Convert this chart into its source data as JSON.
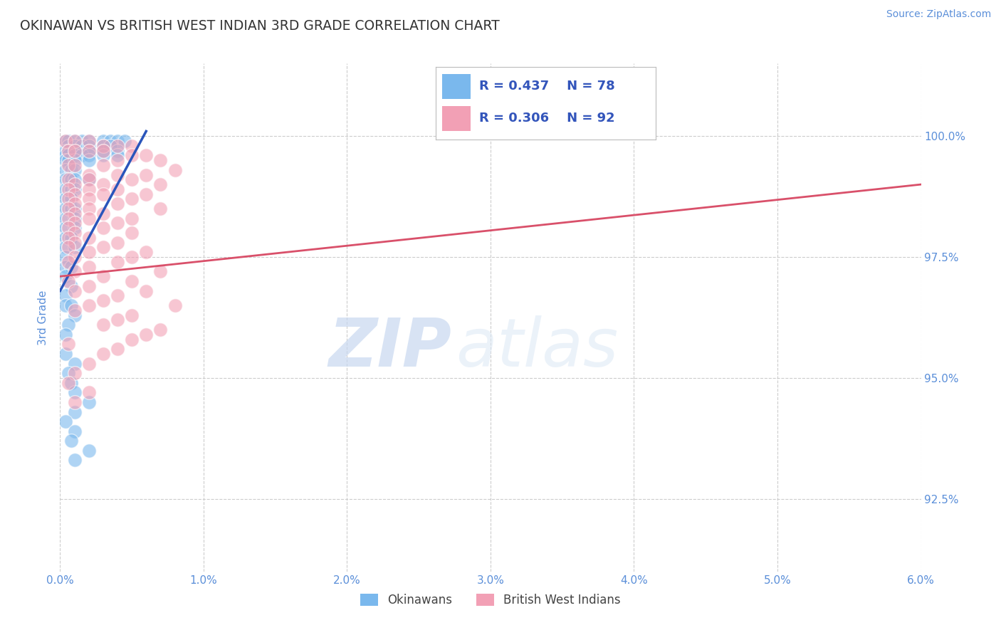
{
  "title": "OKINAWAN VS BRITISH WEST INDIAN 3RD GRADE CORRELATION CHART",
  "source_text": "Source: ZipAtlas.com",
  "ylabel": "3rd Grade",
  "xlim": [
    0.0,
    0.06
  ],
  "ylim": [
    0.91,
    1.015
  ],
  "xticks": [
    0.0,
    0.01,
    0.02,
    0.03,
    0.04,
    0.05,
    0.06
  ],
  "xticklabels": [
    "0.0%",
    "1.0%",
    "2.0%",
    "3.0%",
    "4.0%",
    "5.0%",
    "6.0%"
  ],
  "yticks": [
    0.925,
    0.95,
    0.975,
    1.0
  ],
  "yticklabels": [
    "92.5%",
    "95.0%",
    "97.5%",
    "100.0%"
  ],
  "blue_R": 0.437,
  "blue_N": 78,
  "pink_R": 0.306,
  "pink_N": 92,
  "blue_color": "#7ab8ed",
  "pink_color": "#f2a0b5",
  "blue_line_color": "#2a55bb",
  "pink_line_color": "#d9506a",
  "legend_label_blue": "Okinawans",
  "legend_label_pink": "British West Indians",
  "blue_scatter": [
    [
      0.0004,
      0.999
    ],
    [
      0.0006,
      0.999
    ],
    [
      0.001,
      0.999
    ],
    [
      0.0015,
      0.999
    ],
    [
      0.002,
      0.999
    ],
    [
      0.003,
      0.999
    ],
    [
      0.0035,
      0.999
    ],
    [
      0.004,
      0.999
    ],
    [
      0.0045,
      0.999
    ],
    [
      0.0006,
      0.998
    ],
    [
      0.001,
      0.998
    ],
    [
      0.0015,
      0.998
    ],
    [
      0.002,
      0.998
    ],
    [
      0.003,
      0.998
    ],
    [
      0.0035,
      0.998
    ],
    [
      0.0004,
      0.997
    ],
    [
      0.0006,
      0.997
    ],
    [
      0.001,
      0.997
    ],
    [
      0.002,
      0.997
    ],
    [
      0.003,
      0.997
    ],
    [
      0.004,
      0.997
    ],
    [
      0.0004,
      0.996
    ],
    [
      0.0006,
      0.996
    ],
    [
      0.001,
      0.996
    ],
    [
      0.0015,
      0.996
    ],
    [
      0.002,
      0.996
    ],
    [
      0.003,
      0.996
    ],
    [
      0.004,
      0.996
    ],
    [
      0.0004,
      0.995
    ],
    [
      0.0006,
      0.995
    ],
    [
      0.001,
      0.995
    ],
    [
      0.002,
      0.995
    ],
    [
      0.0004,
      0.993
    ],
    [
      0.0008,
      0.993
    ],
    [
      0.001,
      0.993
    ],
    [
      0.0004,
      0.991
    ],
    [
      0.0008,
      0.991
    ],
    [
      0.001,
      0.991
    ],
    [
      0.002,
      0.991
    ],
    [
      0.0004,
      0.989
    ],
    [
      0.0008,
      0.989
    ],
    [
      0.001,
      0.989
    ],
    [
      0.0004,
      0.987
    ],
    [
      0.0008,
      0.987
    ],
    [
      0.0004,
      0.985
    ],
    [
      0.0008,
      0.985
    ],
    [
      0.001,
      0.985
    ],
    [
      0.0004,
      0.983
    ],
    [
      0.001,
      0.983
    ],
    [
      0.0004,
      0.981
    ],
    [
      0.001,
      0.981
    ],
    [
      0.0004,
      0.979
    ],
    [
      0.0008,
      0.979
    ],
    [
      0.0004,
      0.977
    ],
    [
      0.001,
      0.977
    ],
    [
      0.0004,
      0.975
    ],
    [
      0.0004,
      0.973
    ],
    [
      0.0008,
      0.973
    ],
    [
      0.0004,
      0.971
    ],
    [
      0.0008,
      0.969
    ],
    [
      0.0004,
      0.967
    ],
    [
      0.0004,
      0.965
    ],
    [
      0.0008,
      0.965
    ],
    [
      0.001,
      0.963
    ],
    [
      0.0006,
      0.961
    ],
    [
      0.0004,
      0.959
    ],
    [
      0.0004,
      0.955
    ],
    [
      0.001,
      0.953
    ],
    [
      0.0006,
      0.951
    ],
    [
      0.0008,
      0.949
    ],
    [
      0.001,
      0.947
    ],
    [
      0.002,
      0.945
    ],
    [
      0.001,
      0.943
    ],
    [
      0.0004,
      0.941
    ],
    [
      0.001,
      0.939
    ],
    [
      0.0008,
      0.937
    ],
    [
      0.002,
      0.935
    ],
    [
      0.001,
      0.933
    ]
  ],
  "pink_scatter": [
    [
      0.0004,
      0.999
    ],
    [
      0.001,
      0.999
    ],
    [
      0.002,
      0.999
    ],
    [
      0.003,
      0.998
    ],
    [
      0.004,
      0.998
    ],
    [
      0.005,
      0.998
    ],
    [
      0.0006,
      0.997
    ],
    [
      0.001,
      0.997
    ],
    [
      0.002,
      0.997
    ],
    [
      0.003,
      0.997
    ],
    [
      0.005,
      0.996
    ],
    [
      0.006,
      0.996
    ],
    [
      0.004,
      0.995
    ],
    [
      0.007,
      0.995
    ],
    [
      0.0006,
      0.994
    ],
    [
      0.001,
      0.994
    ],
    [
      0.003,
      0.994
    ],
    [
      0.008,
      0.993
    ],
    [
      0.002,
      0.992
    ],
    [
      0.004,
      0.992
    ],
    [
      0.006,
      0.992
    ],
    [
      0.0006,
      0.991
    ],
    [
      0.002,
      0.991
    ],
    [
      0.005,
      0.991
    ],
    [
      0.001,
      0.99
    ],
    [
      0.003,
      0.99
    ],
    [
      0.007,
      0.99
    ],
    [
      0.0006,
      0.989
    ],
    [
      0.002,
      0.989
    ],
    [
      0.004,
      0.989
    ],
    [
      0.001,
      0.988
    ],
    [
      0.003,
      0.988
    ],
    [
      0.006,
      0.988
    ],
    [
      0.0006,
      0.987
    ],
    [
      0.002,
      0.987
    ],
    [
      0.005,
      0.987
    ],
    [
      0.001,
      0.986
    ],
    [
      0.004,
      0.986
    ],
    [
      0.0006,
      0.985
    ],
    [
      0.002,
      0.985
    ],
    [
      0.007,
      0.985
    ],
    [
      0.001,
      0.984
    ],
    [
      0.003,
      0.984
    ],
    [
      0.0006,
      0.983
    ],
    [
      0.002,
      0.983
    ],
    [
      0.005,
      0.983
    ],
    [
      0.001,
      0.982
    ],
    [
      0.004,
      0.982
    ],
    [
      0.0006,
      0.981
    ],
    [
      0.003,
      0.981
    ],
    [
      0.001,
      0.98
    ],
    [
      0.005,
      0.98
    ],
    [
      0.0006,
      0.979
    ],
    [
      0.002,
      0.979
    ],
    [
      0.001,
      0.978
    ],
    [
      0.004,
      0.978
    ],
    [
      0.0006,
      0.977
    ],
    [
      0.003,
      0.977
    ],
    [
      0.002,
      0.976
    ],
    [
      0.006,
      0.976
    ],
    [
      0.001,
      0.975
    ],
    [
      0.005,
      0.975
    ],
    [
      0.0006,
      0.974
    ],
    [
      0.004,
      0.974
    ],
    [
      0.002,
      0.973
    ],
    [
      0.001,
      0.972
    ],
    [
      0.007,
      0.972
    ],
    [
      0.003,
      0.971
    ],
    [
      0.0006,
      0.97
    ],
    [
      0.005,
      0.97
    ],
    [
      0.002,
      0.969
    ],
    [
      0.001,
      0.968
    ],
    [
      0.006,
      0.968
    ],
    [
      0.004,
      0.967
    ],
    [
      0.003,
      0.966
    ],
    [
      0.002,
      0.965
    ],
    [
      0.008,
      0.965
    ],
    [
      0.001,
      0.964
    ],
    [
      0.005,
      0.963
    ],
    [
      0.004,
      0.962
    ],
    [
      0.003,
      0.961
    ],
    [
      0.007,
      0.96
    ],
    [
      0.006,
      0.959
    ],
    [
      0.005,
      0.958
    ],
    [
      0.0006,
      0.957
    ],
    [
      0.004,
      0.956
    ],
    [
      0.003,
      0.955
    ],
    [
      0.002,
      0.953
    ],
    [
      0.001,
      0.951
    ],
    [
      0.0006,
      0.949
    ],
    [
      0.002,
      0.947
    ],
    [
      0.001,
      0.945
    ]
  ],
  "blue_trend_x": [
    0.0,
    0.006
  ],
  "blue_trend_y": [
    0.968,
    1.001
  ],
  "pink_trend_x": [
    0.0,
    0.06
  ],
  "pink_trend_y": [
    0.971,
    0.99
  ],
  "watermark_zip": "ZIP",
  "watermark_atlas": "atlas",
  "bg_color": "#ffffff",
  "grid_color": "#cccccc",
  "tick_label_color": "#5b8fd9",
  "title_color": "#333333",
  "legend_text_color": "#444444",
  "legend_r_color": "#3355bb",
  "source_color": "#5b8fd9"
}
